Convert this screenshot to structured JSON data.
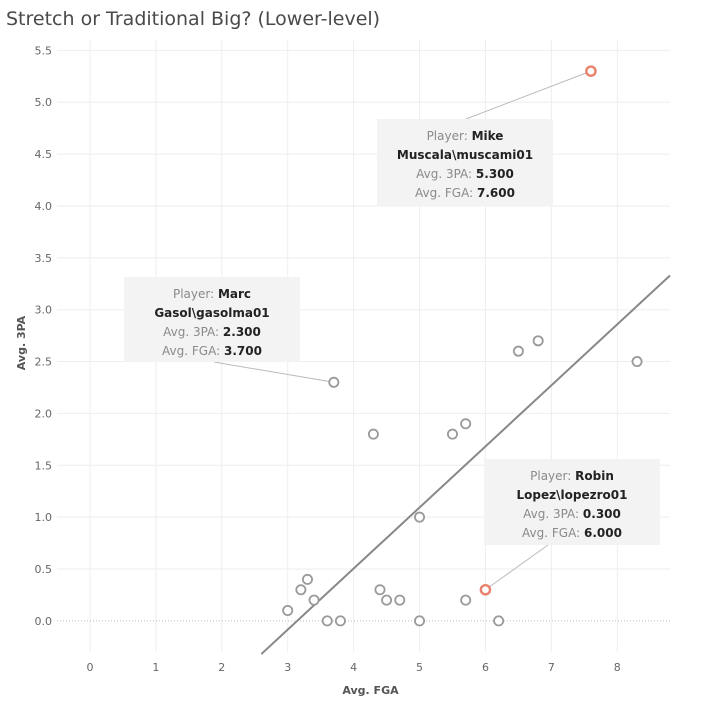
{
  "title": "Stretch or Traditional Big? (Lower-level)",
  "chart_data": {
    "type": "scatter",
    "title": "Stretch or Traditional Big? (Lower-level)",
    "xlabel": "Avg. FGA",
    "ylabel": "Avg. 3PA",
    "xlim": [
      -0.5,
      8.8
    ],
    "ylim": [
      -0.3,
      5.6
    ],
    "xticks": [
      "0",
      "1",
      "2",
      "3",
      "4",
      "5",
      "6",
      "7",
      "8"
    ],
    "yticks": [
      "0.0",
      "0.5",
      "1.0",
      "1.5",
      "2.0",
      "2.5",
      "3.0",
      "3.5",
      "4.0",
      "4.5",
      "5.0",
      "5.5"
    ],
    "grid": true,
    "trend_line": {
      "x": [
        2.6,
        8.8
      ],
      "y": [
        -0.32,
        3.33
      ]
    },
    "colors": {
      "default": "#9a9a9a",
      "highlight": "#e8826d",
      "trend": "#888888"
    },
    "points": [
      {
        "x": 3.0,
        "y": 0.1
      },
      {
        "x": 3.2,
        "y": 0.3
      },
      {
        "x": 3.3,
        "y": 0.4
      },
      {
        "x": 3.4,
        "y": 0.2
      },
      {
        "x": 3.6,
        "y": 0.0
      },
      {
        "x": 3.8,
        "y": 0.0
      },
      {
        "x": 3.7,
        "y": 2.3
      },
      {
        "x": 4.3,
        "y": 1.8
      },
      {
        "x": 4.4,
        "y": 0.3
      },
      {
        "x": 4.5,
        "y": 0.2
      },
      {
        "x": 4.7,
        "y": 0.2
      },
      {
        "x": 5.0,
        "y": 1.0
      },
      {
        "x": 5.0,
        "y": 0.0
      },
      {
        "x": 5.5,
        "y": 1.8
      },
      {
        "x": 5.7,
        "y": 1.9
      },
      {
        "x": 5.7,
        "y": 0.2
      },
      {
        "x": 6.0,
        "y": 0.3,
        "highlight": true
      },
      {
        "x": 6.2,
        "y": 0.0
      },
      {
        "x": 6.5,
        "y": 2.6
      },
      {
        "x": 6.8,
        "y": 2.7
      },
      {
        "x": 7.6,
        "y": 5.3,
        "highlight": true
      },
      {
        "x": 8.3,
        "y": 2.5
      }
    ]
  },
  "tooltips": {
    "mike": {
      "player_key": "Player:",
      "player_val_1": "Mike",
      "player_val_2": "Muscala\\muscami01",
      "threepa_key": "Avg. 3PA:",
      "threepa_val": "5.300",
      "fga_key": "Avg. FGA:",
      "fga_val": "7.600"
    },
    "marc": {
      "player_key": "Player:",
      "player_val_1": "Marc",
      "player_val_2": "Gasol\\gasolma01",
      "threepa_key": "Avg. 3PA:",
      "threepa_val": "2.300",
      "fga_key": "Avg. FGA:",
      "fga_val": "3.700"
    },
    "robin": {
      "player_key": "Player:",
      "player_val_1": "Robin",
      "player_val_2": "Lopez\\lopezro01",
      "threepa_key": "Avg. 3PA:",
      "threepa_val": "0.300",
      "fga_key": "Avg. FGA:",
      "fga_val": "6.000"
    }
  }
}
